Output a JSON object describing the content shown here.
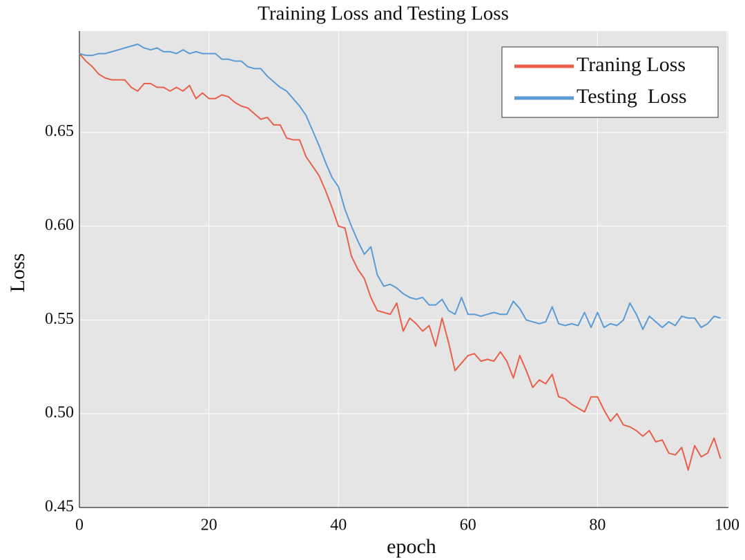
{
  "chart_data": {
    "type": "line",
    "title": "Training Loss and Testing Loss",
    "x_label": "epoch",
    "y_label": "Loss",
    "x": [
      0,
      1,
      2,
      3,
      4,
      5,
      6,
      7,
      8,
      9,
      10,
      11,
      12,
      13,
      14,
      15,
      16,
      17,
      18,
      19,
      20,
      21,
      22,
      23,
      24,
      25,
      26,
      27,
      28,
      29,
      30,
      31,
      32,
      33,
      34,
      35,
      36,
      37,
      38,
      39,
      40,
      41,
      42,
      43,
      44,
      45,
      46,
      47,
      48,
      49,
      50,
      51,
      52,
      53,
      54,
      55,
      56,
      57,
      58,
      59,
      60,
      61,
      62,
      63,
      64,
      65,
      66,
      67,
      68,
      69,
      70,
      71,
      72,
      73,
      74,
      75,
      76,
      77,
      78,
      79,
      80,
      81,
      82,
      83,
      84,
      85,
      86,
      87,
      88,
      89,
      90,
      91,
      92,
      93,
      94,
      95,
      96,
      97,
      98,
      99
    ],
    "series": [
      {
        "name": "Traning Loss",
        "color": "#e8604a",
        "values": [
          0.692,
          0.688,
          0.685,
          0.681,
          0.679,
          0.678,
          0.678,
          0.678,
          0.674,
          0.672,
          0.676,
          0.676,
          0.674,
          0.674,
          0.672,
          0.674,
          0.672,
          0.675,
          0.668,
          0.671,
          0.668,
          0.668,
          0.67,
          0.669,
          0.666,
          0.664,
          0.663,
          0.66,
          0.657,
          0.658,
          0.654,
          0.654,
          0.647,
          0.646,
          0.646,
          0.637,
          0.632,
          0.627,
          0.619,
          0.61,
          0.6,
          0.599,
          0.584,
          0.577,
          0.572,
          0.562,
          0.555,
          0.554,
          0.553,
          0.559,
          0.544,
          0.551,
          0.548,
          0.544,
          0.547,
          0.536,
          0.551,
          0.538,
          0.523,
          0.527,
          0.531,
          0.532,
          0.528,
          0.529,
          0.528,
          0.533,
          0.528,
          0.519,
          0.531,
          0.523,
          0.514,
          0.518,
          0.516,
          0.521,
          0.509,
          0.508,
          0.505,
          0.503,
          0.501,
          0.509,
          0.509,
          0.502,
          0.496,
          0.5,
          0.494,
          0.493,
          0.491,
          0.488,
          0.491,
          0.485,
          0.486,
          0.479,
          0.478,
          0.482,
          0.47,
          0.483,
          0.477,
          0.479,
          0.487,
          0.476
        ]
      },
      {
        "name": "Testing  Loss",
        "color": "#5b9bd5",
        "values": [
          0.692,
          0.691,
          0.691,
          0.692,
          0.692,
          0.693,
          0.694,
          0.695,
          0.696,
          0.697,
          0.695,
          0.694,
          0.695,
          0.693,
          0.693,
          0.692,
          0.694,
          0.692,
          0.693,
          0.692,
          0.692,
          0.692,
          0.689,
          0.689,
          0.688,
          0.688,
          0.685,
          0.684,
          0.684,
          0.68,
          0.677,
          0.674,
          0.672,
          0.668,
          0.664,
          0.659,
          0.651,
          0.643,
          0.634,
          0.626,
          0.621,
          0.609,
          0.6,
          0.592,
          0.585,
          0.589,
          0.574,
          0.568,
          0.569,
          0.567,
          0.564,
          0.562,
          0.561,
          0.562,
          0.558,
          0.558,
          0.561,
          0.555,
          0.553,
          0.562,
          0.553,
          0.553,
          0.552,
          0.553,
          0.554,
          0.553,
          0.553,
          0.56,
          0.556,
          0.55,
          0.549,
          0.548,
          0.549,
          0.557,
          0.548,
          0.547,
          0.548,
          0.547,
          0.554,
          0.546,
          0.554,
          0.546,
          0.548,
          0.547,
          0.55,
          0.559,
          0.553,
          0.545,
          0.552,
          0.549,
          0.546,
          0.549,
          0.547,
          0.552,
          0.551,
          0.551,
          0.546,
          0.548,
          0.552,
          0.551
        ]
      }
    ],
    "xlim": [
      0,
      100
    ],
    "xticks": [
      0,
      20,
      40,
      60,
      80,
      100
    ],
    "ylim": [
      0.45,
      0.704
    ],
    "yticks": [
      0.45,
      {
        "value": 0.5,
        "label": "0.50"
      },
      0.55,
      {
        "value": 0.6,
        "label": "0.60"
      },
      0.65
    ],
    "grid": true,
    "legend": "upper right"
  }
}
